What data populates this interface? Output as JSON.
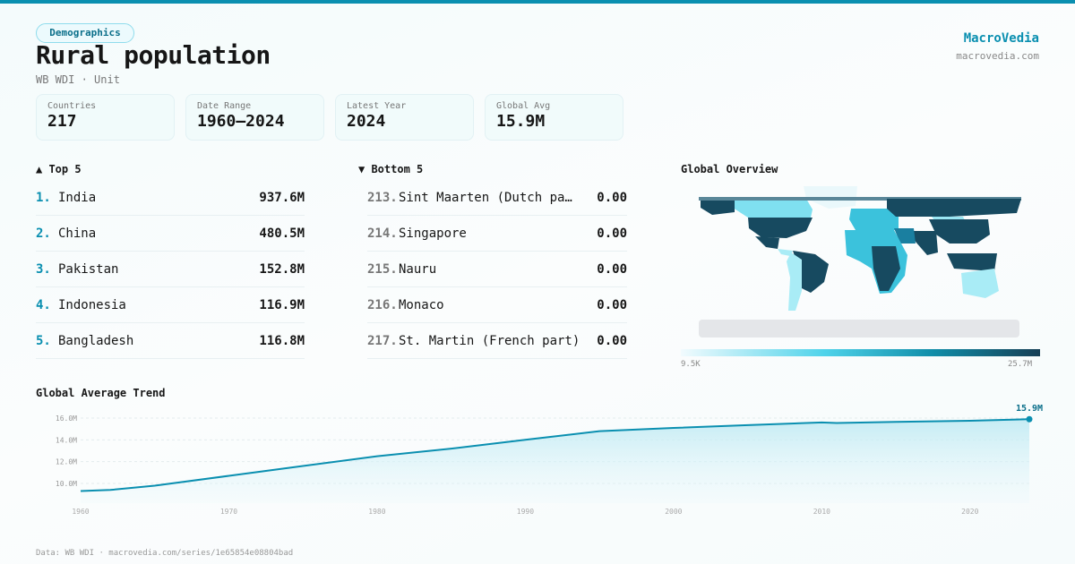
{
  "header": {
    "category": "Demographics",
    "title": "Rural population",
    "subtitle": "WB WDI · Unit",
    "brand": "MacroVedia",
    "brand_url": "macrovedia.com"
  },
  "stats": [
    {
      "label": "Countries",
      "value": "217"
    },
    {
      "label": "Date Range",
      "value": "1960–2024"
    },
    {
      "label": "Latest Year",
      "value": "2024"
    },
    {
      "label": "Global Avg",
      "value": "15.9M"
    }
  ],
  "top5": {
    "title": "▲ Top 5",
    "items": [
      {
        "rank": "1.",
        "name": "India",
        "value": "937.6M"
      },
      {
        "rank": "2.",
        "name": "China",
        "value": "480.5M"
      },
      {
        "rank": "3.",
        "name": "Pakistan",
        "value": "152.8M"
      },
      {
        "rank": "4.",
        "name": "Indonesia",
        "value": "116.9M"
      },
      {
        "rank": "5.",
        "name": "Bangladesh",
        "value": "116.8M"
      }
    ]
  },
  "bottom5": {
    "title": "▼ Bottom 5",
    "items": [
      {
        "rank": "213.",
        "name": "Sint Maarten (Dutch pa…",
        "value": "0.00"
      },
      {
        "rank": "214.",
        "name": "Singapore",
        "value": "0.00"
      },
      {
        "rank": "215.",
        "name": "Nauru",
        "value": "0.00"
      },
      {
        "rank": "216.",
        "name": "Monaco",
        "value": "0.00"
      },
      {
        "rank": "217.",
        "name": "St. Martin (French part)",
        "value": "0.00"
      }
    ]
  },
  "map": {
    "title": "Global Overview",
    "scale_min": "9.5K",
    "scale_max": "25.7M",
    "colors": {
      "low": "#f2fbfe",
      "mid": "#4fd3ea",
      "high": "#163f55",
      "no_data": "#e4e6e9"
    }
  },
  "chart_data": {
    "type": "area",
    "title": "Global Average Trend",
    "x": [
      1960,
      1962,
      1965,
      1970,
      1975,
      1980,
      1985,
      1990,
      1995,
      2000,
      2005,
      2010,
      2011,
      2015,
      2020,
      2024
    ],
    "y": [
      9.3,
      9.4,
      9.8,
      10.7,
      11.6,
      12.5,
      13.2,
      14.0,
      14.8,
      15.1,
      15.35,
      15.6,
      15.55,
      15.65,
      15.75,
      15.9
    ],
    "unit": "M",
    "yticks": [
      "10.0M",
      "12.0M",
      "14.0M",
      "16.0M"
    ],
    "xticks": [
      1960,
      1970,
      1980,
      1990,
      2000,
      2010,
      2020
    ],
    "last_label": "15.9M",
    "color": "#0a8fb0",
    "grid": true
  },
  "footer": "Data: WB WDI · macrovedia.com/series/1e65854e08804bad"
}
